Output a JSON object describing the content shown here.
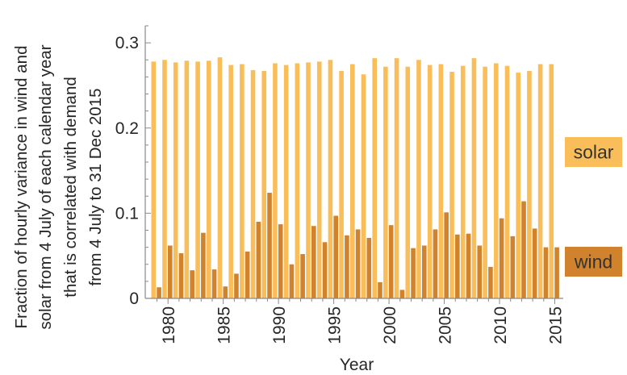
{
  "chart_data": {
    "type": "bar",
    "xlabel": "Year",
    "ylabel_lines": [
      "Fraction of hourly variance in wind and",
      "solar from 4 July of each calendar year",
      "that is correlated with demand",
      "from 4 July to 31 Dec 2015"
    ],
    "ylim": [
      0,
      0.32
    ],
    "yticks": [
      0,
      0.1,
      0.2,
      0.3
    ],
    "ytick_labels": [
      "0",
      "0.1",
      "0.2",
      "0.3"
    ],
    "xticks": [
      1980,
      1985,
      1990,
      1995,
      2000,
      2005,
      2010,
      2015
    ],
    "xtick_labels": [
      "1980",
      "1985",
      "1990",
      "1995",
      "2000",
      "2005",
      "2010",
      "2015"
    ],
    "legend_placement": "right",
    "grid": false,
    "categories": [
      1979,
      1980,
      1981,
      1982,
      1983,
      1984,
      1985,
      1986,
      1987,
      1988,
      1989,
      1990,
      1991,
      1992,
      1993,
      1994,
      1995,
      1996,
      1997,
      1998,
      1999,
      2000,
      2001,
      2002,
      2003,
      2004,
      2005,
      2006,
      2007,
      2008,
      2009,
      2010,
      2011,
      2012,
      2013,
      2014,
      2015
    ],
    "series": [
      {
        "name": "solar",
        "color": "#F9BE5A",
        "values": [
          0.278,
          0.28,
          0.277,
          0.279,
          0.278,
          0.279,
          0.283,
          0.274,
          0.275,
          0.268,
          0.267,
          0.276,
          0.274,
          0.276,
          0.277,
          0.278,
          0.28,
          0.267,
          0.275,
          0.263,
          0.282,
          0.272,
          0.282,
          0.272,
          0.28,
          0.274,
          0.275,
          0.266,
          0.273,
          0.282,
          0.272,
          0.276,
          0.273,
          0.265,
          0.267,
          0.275,
          0.275
        ]
      },
      {
        "name": "wind",
        "color": "#D0822D",
        "values": [
          0.013,
          0.062,
          0.053,
          0.033,
          0.077,
          0.034,
          0.014,
          0.029,
          0.055,
          0.09,
          0.124,
          0.087,
          0.04,
          0.052,
          0.085,
          0.066,
          0.097,
          0.074,
          0.081,
          0.071,
          0.019,
          0.086,
          0.01,
          0.059,
          0.062,
          0.081,
          0.101,
          0.075,
          0.076,
          0.062,
          0.037,
          0.094,
          0.073,
          0.114,
          0.082,
          0.06,
          0.06
        ]
      }
    ]
  }
}
